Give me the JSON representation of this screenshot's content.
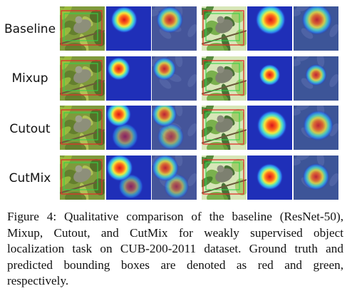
{
  "rows": [
    {
      "label": "Baseline"
    },
    {
      "label": "Mixup"
    },
    {
      "label": "Cutout"
    },
    {
      "label": "CutMix"
    }
  ],
  "caption": "Figure 4: Qualitative comparison of the baseline (ResNet-50), Mixup, Cutout, and CutMix for weakly supervised object localization task on CUB-200-2011 dataset. Ground truth and predicted bounding boxes are denoted as red and green, respectively.",
  "colors": {
    "ground_truth_box": "#e0302a",
    "predicted_box": "#34d24a",
    "heatmap_background": "#1f2fb8"
  }
}
